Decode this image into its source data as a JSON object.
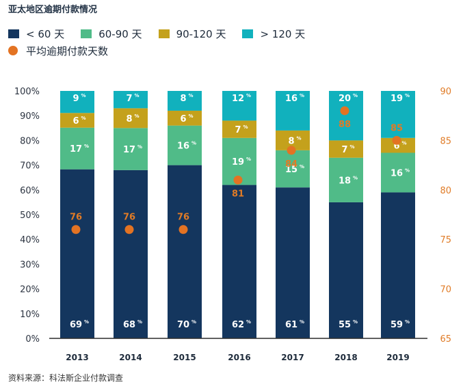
{
  "title": "亚太地区逾期付款情况",
  "source": "资料来源：科法斯企业付款调查",
  "legend": [
    {
      "label": "< 60 天",
      "color": "#14365e",
      "type": "bar"
    },
    {
      "label": "60-90 天",
      "color": "#50bb88",
      "type": "bar"
    },
    {
      "label": "90-120 天",
      "color": "#c4a11c",
      "type": "bar"
    },
    {
      "label": "> 120 天",
      "color": "#11b1bd",
      "type": "bar"
    },
    {
      "label": "平均逾期付款天数",
      "color": "#e37323",
      "type": "dot"
    }
  ],
  "chart_data": {
    "type": "bar",
    "stacked": true,
    "title": "亚太地区逾期付款情况",
    "categories": [
      "2013",
      "2014",
      "2015",
      "2016",
      "2017",
      "2018",
      "2019"
    ],
    "series": [
      {
        "name": "< 60 天",
        "color": "#14365e",
        "values": [
          69,
          68,
          70,
          62,
          61,
          55,
          59
        ]
      },
      {
        "name": "60-90 天",
        "color": "#50bb88",
        "values": [
          17,
          17,
          16,
          19,
          15,
          18,
          16
        ]
      },
      {
        "name": "90-120 天",
        "color": "#c4a11c",
        "values": [
          6,
          8,
          6,
          7,
          8,
          7,
          6
        ]
      },
      {
        "name": "> 120 天",
        "color": "#11b1bd",
        "values": [
          9,
          7,
          8,
          12,
          16,
          20,
          19
        ]
      }
    ],
    "overlay": {
      "type": "scatter",
      "name": "平均逾期付款天数",
      "color": "#e37323",
      "axis": "right",
      "values": [
        76,
        76,
        76,
        81,
        84,
        88,
        85
      ],
      "labels": [
        "76",
        "76",
        "76",
        "81",
        "84",
        "88",
        "85"
      ]
    },
    "y_left": {
      "ylim": [
        0,
        100
      ],
      "ticks": [
        "0%",
        "10%",
        "20%",
        "30%",
        "40%",
        "50%",
        "60%",
        "70%",
        "80%",
        "90%",
        "100%"
      ],
      "tick_values": [
        0,
        10,
        20,
        30,
        40,
        50,
        60,
        70,
        80,
        90,
        100
      ]
    },
    "y_right": {
      "ylim": [
        65,
        90
      ],
      "ticks": [
        "65",
        "70",
        "75",
        "80",
        "85",
        "90"
      ],
      "tick_values": [
        65,
        70,
        75,
        80,
        85,
        90
      ],
      "color": "#e07b26"
    },
    "percent_suffix": "%",
    "xlabel": "",
    "ylabel": "",
    "grid": false,
    "legend_position": "top-left"
  }
}
